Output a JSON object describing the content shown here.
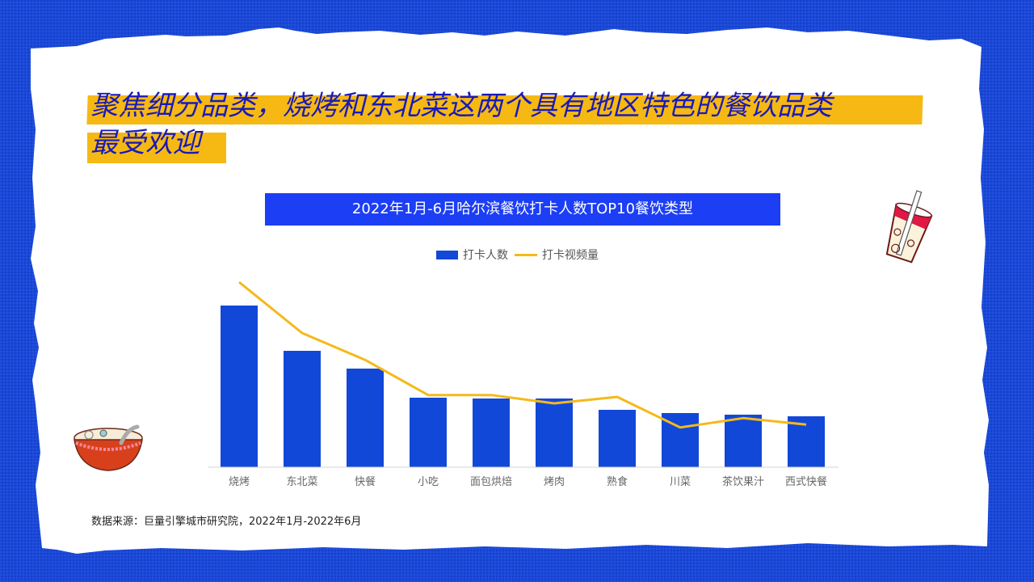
{
  "slide": {
    "title_line1": "聚焦细分品类，烧烤和东北菜这两个具有地区特色的餐饮品类",
    "title_line2": "最受欢迎",
    "chart_title": "2022年1月-6月哈尔滨餐饮打卡人数TOP10餐饮类型",
    "legend": {
      "bar_label": "打卡人数",
      "line_label": "打卡视频量"
    },
    "source": "数据来源：巨量引擎城市研究院，2022年1月-2022年6月",
    "icons": [
      "drink-cup-icon",
      "noodle-bowl-icon"
    ],
    "colors": {
      "background": "#1545dc",
      "highlight": "#f6b914",
      "title_text": "#1a1ab8",
      "bar": "#1248d8",
      "line": "#f5b91a",
      "chart_title_bg": "#1c3ef5"
    }
  },
  "chart_data": {
    "type": "bar",
    "title": "2022年1月-6月哈尔滨餐饮打卡人数TOP10餐饮类型",
    "xlabel": "",
    "ylabel": "",
    "grid": false,
    "legend_position": "top",
    "categories": [
      "烧烤",
      "东北菜",
      "快餐",
      "小吃",
      "面包烘焙",
      "烤肉",
      "熟食",
      "川菜",
      "茶饮果汁",
      "西式快餐"
    ],
    "series": [
      {
        "name": "打卡人数",
        "type": "bar",
        "values": [
          100,
          72,
          61,
          43,
          42.5,
          42.5,
          35.5,
          33.5,
          32.5,
          31.5
        ]
      },
      {
        "name": "打卡视频量",
        "type": "line",
        "values": [
          100,
          72.5,
          58,
          39,
          39,
          34.5,
          38,
          21.5,
          26.5,
          23
        ]
      }
    ],
    "note": "relative values read from pixel heights (no axis labels shown); 烧烤 bar = 100"
  }
}
